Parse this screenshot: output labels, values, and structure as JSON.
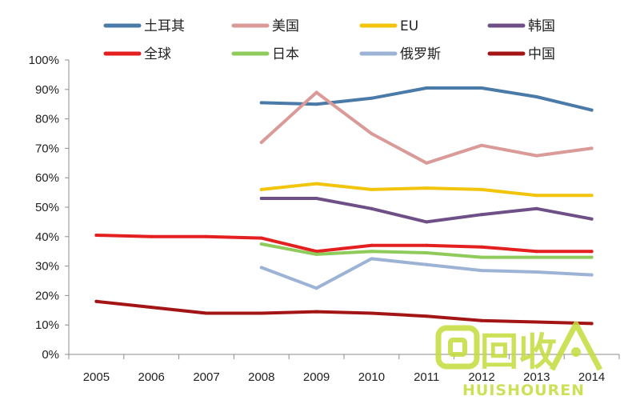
{
  "chart_data": {
    "type": "line",
    "title": "",
    "xlabel": "",
    "ylabel": "",
    "x": [
      "2005",
      "2006",
      "2007",
      "2008",
      "2009",
      "2010",
      "2011",
      "2012",
      "2013",
      "2014"
    ],
    "ylim": [
      0,
      100
    ],
    "y_ticks": [
      "0%",
      "10%",
      "20%",
      "30%",
      "40%",
      "50%",
      "60%",
      "70%",
      "80%",
      "90%",
      "100%"
    ],
    "grid": false,
    "legend_position": "top",
    "series": [
      {
        "name": "土耳其",
        "color": "#4a7aa8",
        "values": [
          null,
          null,
          null,
          85.5,
          85,
          87,
          90.5,
          90.5,
          87.5,
          83
        ]
      },
      {
        "name": "美国",
        "color": "#d99a98",
        "values": [
          null,
          null,
          null,
          72,
          89,
          75,
          65,
          71,
          67.5,
          70
        ]
      },
      {
        "name": "EU",
        "color": "#f2c40c",
        "values": [
          null,
          null,
          null,
          56,
          58,
          56,
          56.5,
          56,
          54,
          54
        ]
      },
      {
        "name": "韩国",
        "color": "#6e4f86",
        "values": [
          null,
          null,
          null,
          53,
          53,
          49.5,
          45,
          47.5,
          49.5,
          46
        ]
      },
      {
        "name": "全球",
        "color": "#e31f1f",
        "values": [
          40.5,
          40,
          40,
          39.5,
          35,
          37,
          37,
          36.5,
          35,
          35
        ]
      },
      {
        "name": "日本",
        "color": "#8fcb5a",
        "values": [
          null,
          null,
          null,
          37.5,
          34,
          35,
          34.5,
          33,
          33,
          33
        ]
      },
      {
        "name": "俄罗斯",
        "color": "#9db3d5",
        "values": [
          null,
          null,
          null,
          29.5,
          22.5,
          32.5,
          30.5,
          28.5,
          28,
          27
        ]
      },
      {
        "name": "中国",
        "color": "#a31515",
        "values": [
          18,
          16,
          14,
          14,
          14.5,
          14,
          13,
          11.5,
          11,
          10.5
        ]
      }
    ]
  },
  "watermark": {
    "main": "回收",
    "sub": "HUISHOUREN",
    "color": "#c4dc3c"
  }
}
